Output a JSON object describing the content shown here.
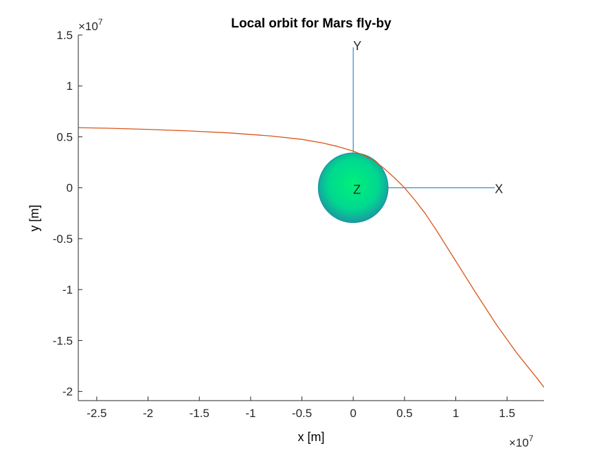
{
  "chart_data": {
    "type": "line",
    "title": "Local orbit for Mars fly-by",
    "xlabel": "x [m]",
    "ylabel": "y [m]",
    "x_exponent_label": "×10",
    "x_exponent_power": "7",
    "y_exponent_label": "×10",
    "y_exponent_power": "7",
    "xlim": [
      -2.68,
      1.86
    ],
    "ylim": [
      -2.09,
      1.5
    ],
    "scale_factor": 10000000,
    "x_ticks": [
      -2.5,
      -2,
      -1.5,
      -1,
      -0.5,
      0,
      0.5,
      1,
      1.5
    ],
    "x_tick_labels": [
      "-2.5",
      "-2",
      "-1.5",
      "-1",
      "-0.5",
      "0",
      "0.5",
      "1",
      "1.5"
    ],
    "y_ticks": [
      -2,
      -1.5,
      -1,
      -0.5,
      0,
      0.5,
      1,
      1.5
    ],
    "y_tick_labels": [
      "-2",
      "-1.5",
      "-1",
      "-0.5",
      "0",
      "0.5",
      "1",
      "1.5"
    ],
    "grid": false,
    "series": [
      {
        "color": "#d95319",
        "x": [
          -2.68,
          -2.4,
          -2.0,
          -1.6,
          -1.2,
          -0.8,
          -0.5,
          -0.3,
          -0.15,
          0.0,
          0.1,
          0.2,
          0.3,
          0.4,
          0.5,
          0.6,
          0.7,
          0.8,
          1.0,
          1.2,
          1.4,
          1.6,
          1.8,
          1.86
        ],
        "y": [
          0.59,
          0.585,
          0.573,
          0.558,
          0.538,
          0.508,
          0.475,
          0.44,
          0.405,
          0.36,
          0.32,
          0.27,
          0.19,
          0.1,
          0.0,
          -0.12,
          -0.25,
          -0.4,
          -0.72,
          -1.04,
          -1.35,
          -1.63,
          -1.88,
          -1.96
        ]
      }
    ],
    "planet": {
      "name": "Mars",
      "center": [
        0,
        0
      ],
      "radius": 0.34,
      "fill_center": "#00f07a",
      "fill_edge": "#1a9aa0"
    },
    "frame_axes": [
      {
        "label": "X",
        "from": [
          0,
          0
        ],
        "to": [
          1.38,
          0
        ],
        "color": "#0072bd"
      },
      {
        "label": "Y",
        "from": [
          0,
          0
        ],
        "to": [
          0,
          1.38
        ],
        "color": "#0072bd"
      },
      {
        "label": "Z",
        "at": [
          0,
          0
        ]
      }
    ]
  }
}
